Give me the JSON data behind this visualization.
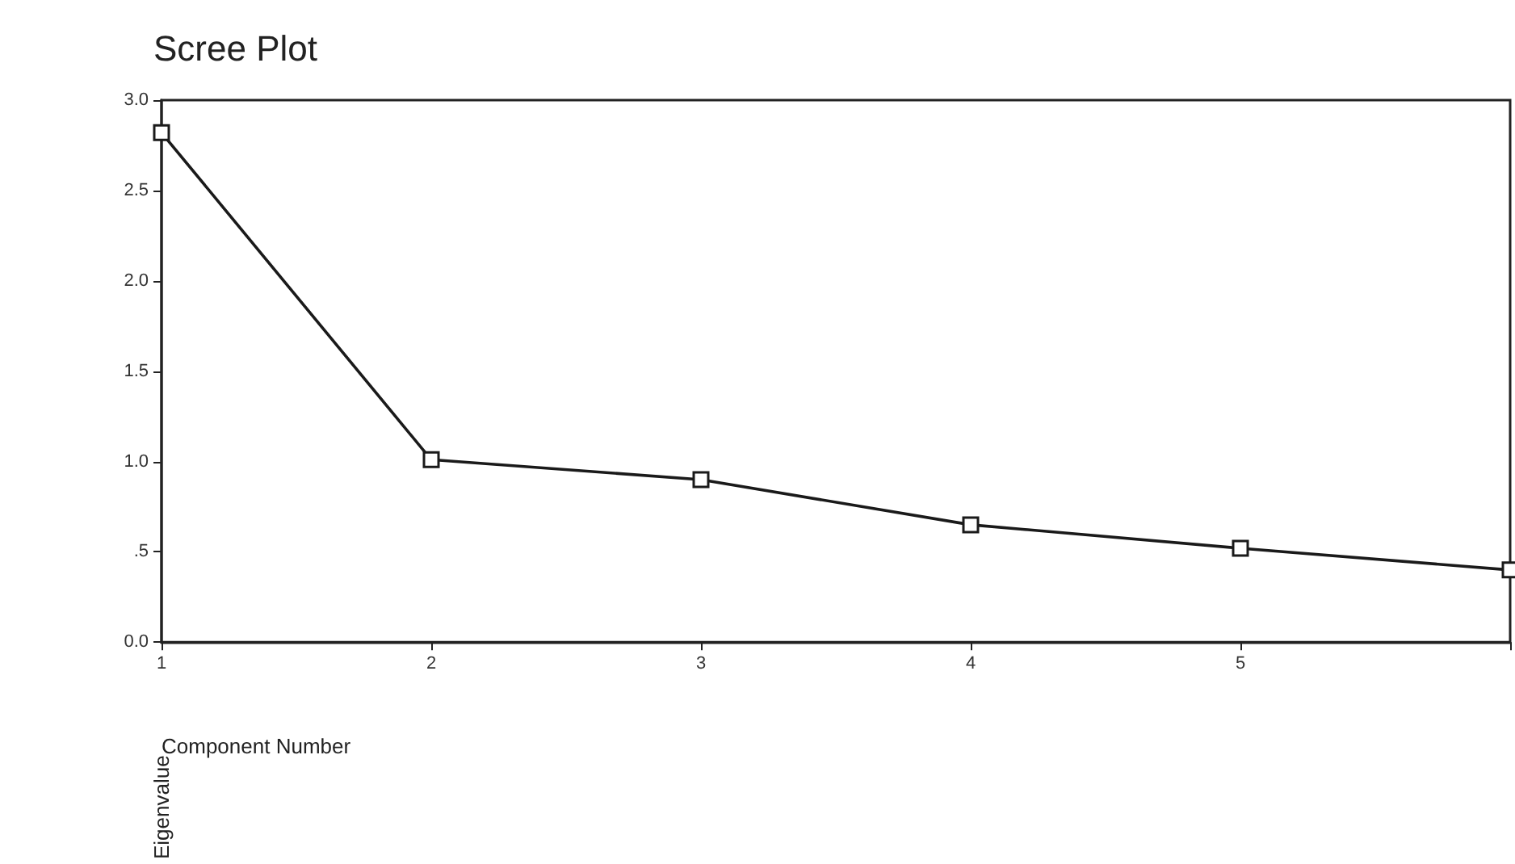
{
  "chart_data": {
    "type": "line",
    "title": "Scree Plot",
    "xlabel": "Component Number",
    "ylabel": "Eigenvalue",
    "categories": [
      "1",
      "2",
      "3",
      "4",
      "5",
      null
    ],
    "series": [
      {
        "color": "#1a1a1a",
        "values": [
          2.82,
          1.01,
          0.9,
          0.65,
          0.52,
          0.4
        ]
      }
    ],
    "ylim": [
      0,
      3
    ],
    "yticks": [
      {
        "value": 0,
        "label": "0.0"
      },
      {
        "value": 0.5,
        "label": ".5"
      },
      {
        "value": 1,
        "label": "1.0"
      },
      {
        "value": 1.5,
        "label": "1.5"
      },
      {
        "value": 2,
        "label": "2.0"
      },
      {
        "value": 2.5,
        "label": "2.5"
      },
      {
        "value": 3,
        "label": "3.0"
      }
    ],
    "grid": false,
    "marker": "square",
    "line_style": "solid"
  }
}
